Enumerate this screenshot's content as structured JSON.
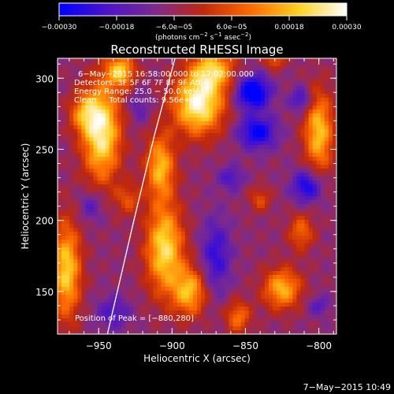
{
  "chart_data": {
    "type": "heatmap",
    "title": "Reconstructed RHESSI Image",
    "xlabel": "Heliocentric X (arcsec)",
    "ylabel": "Heliocentric Y (arcsec)",
    "xlim": [
      -978,
      -788
    ],
    "ylim": [
      120,
      314
    ],
    "x_ticks": [
      -950,
      -900,
      -850,
      -800
    ],
    "x_tick_labels": [
      "−950",
      "−900",
      "−850",
      "−800"
    ],
    "y_ticks": [
      150,
      200,
      250,
      300
    ],
    "y_tick_labels": [
      "150",
      "200",
      "250",
      "300"
    ],
    "colorbar": {
      "range": [
        -0.0003,
        0.0003
      ],
      "tick_values": [
        -0.0003,
        -0.00018,
        -6e-05,
        6e-05,
        0.00018,
        0.0003
      ],
      "tick_labels": [
        "−0.00030",
        "−0.00018",
        "−6.0e−05",
        "6.0e−05",
        "0.00018",
        "0.00030"
      ],
      "unit_main": "(photons cm",
      "unit_exp1": "−2",
      "unit_mid": " s",
      "unit_exp2": "−1",
      "unit_tail": " asec",
      "unit_exp3": "−2",
      "unit_close": ")",
      "colormap": [
        "#0000ff",
        "#4a14c8",
        "#7c2a8e",
        "#c0280c",
        "#ff6a00",
        "#ffd020",
        "#ffffff"
      ]
    },
    "info_lines": [
      "6−May−2015 16:58:00.000 to 17:02:00.000",
      "Detectors: 3F 5F 6F 7F 8F 9F Att 0",
      "Energy Range: 25.0 − 50.0 keV",
      "Clean     Total counts: 9.56e+03"
    ],
    "peak_text": "Position of Peak = [−880,280]",
    "peak": [
      -880,
      280
    ],
    "limb": [
      [
        -944,
        120
      ],
      [
        -926,
        200
      ],
      [
        -912,
        260
      ],
      [
        -898,
        314
      ]
    ],
    "sources": [
      {
        "x": -882,
        "y": 282,
        "sx": 12,
        "sy": 15,
        "a": 1.0
      },
      {
        "x": -872,
        "y": 306,
        "sx": 10,
        "sy": 10,
        "a": 0.7
      },
      {
        "x": -948,
        "y": 262,
        "sx": 9,
        "sy": 24,
        "a": 0.95
      },
      {
        "x": -960,
        "y": 275,
        "sx": 7,
        "sy": 10,
        "a": 0.5
      },
      {
        "x": -935,
        "y": 305,
        "sx": 7,
        "sy": 8,
        "a": 0.75
      },
      {
        "x": -908,
        "y": 238,
        "sx": 7,
        "sy": 16,
        "a": 0.7
      },
      {
        "x": -905,
        "y": 180,
        "sx": 9,
        "sy": 22,
        "a": 0.85
      },
      {
        "x": -888,
        "y": 150,
        "sx": 8,
        "sy": 12,
        "a": 0.7
      },
      {
        "x": -972,
        "y": 165,
        "sx": 7,
        "sy": 24,
        "a": 0.8
      },
      {
        "x": -800,
        "y": 262,
        "sx": 7,
        "sy": 20,
        "a": 0.75
      },
      {
        "x": -812,
        "y": 192,
        "sx": 6,
        "sy": 9,
        "a": 0.45
      },
      {
        "x": -840,
        "y": 215,
        "sx": 5,
        "sy": 6,
        "a": 0.35
      },
      {
        "x": -825,
        "y": 152,
        "sx": 9,
        "sy": 10,
        "a": 0.7
      },
      {
        "x": -855,
        "y": 132,
        "sx": 6,
        "sy": 8,
        "a": 0.5
      },
      {
        "x": -830,
        "y": 312,
        "sx": 5,
        "sy": 4,
        "a": 0.4
      },
      {
        "x": -930,
        "y": 215,
        "sx": 6,
        "sy": 8,
        "a": 0.35
      },
      {
        "x": -845,
        "y": 290,
        "sx": 8,
        "sy": 8,
        "a": -0.85
      },
      {
        "x": -842,
        "y": 262,
        "sx": 9,
        "sy": 8,
        "a": -0.65
      },
      {
        "x": -808,
        "y": 224,
        "sx": 7,
        "sy": 8,
        "a": -0.6
      },
      {
        "x": -812,
        "y": 285,
        "sx": 5,
        "sy": 6,
        "a": -0.45
      },
      {
        "x": -870,
        "y": 175,
        "sx": 7,
        "sy": 18,
        "a": -0.45
      },
      {
        "x": -800,
        "y": 140,
        "sx": 5,
        "sy": 5,
        "a": -0.3
      },
      {
        "x": -940,
        "y": 135,
        "sx": 8,
        "sy": 8,
        "a": -0.35
      },
      {
        "x": -955,
        "y": 210,
        "sx": 6,
        "sy": 8,
        "a": -0.3
      },
      {
        "x": -922,
        "y": 280,
        "sx": 5,
        "sy": 8,
        "a": -0.25
      },
      {
        "x": -860,
        "y": 230,
        "sx": 6,
        "sy": 6,
        "a": -0.35
      }
    ]
  },
  "timestamp": "7−May−2015 10:49"
}
